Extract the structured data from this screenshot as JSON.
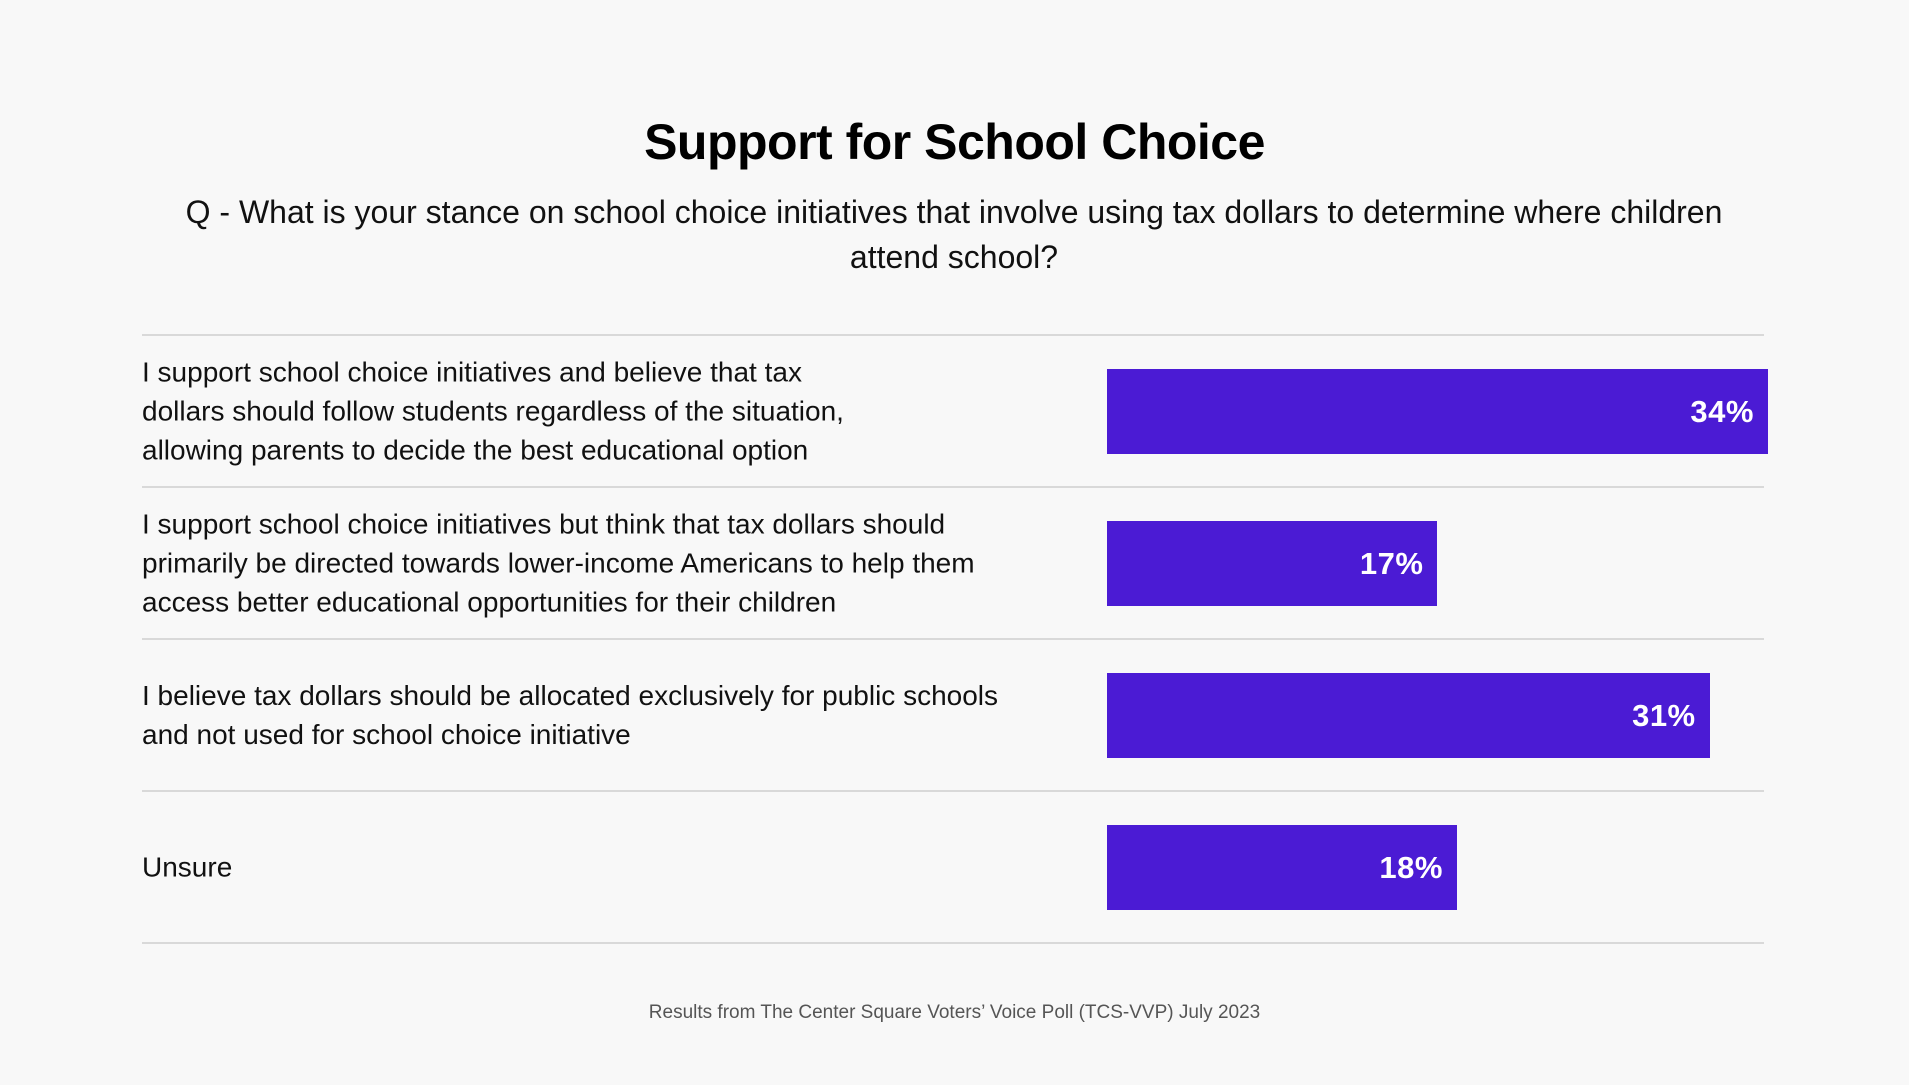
{
  "header": {
    "title": "Support for School Choice",
    "subtitle": "Q - What is your stance on school choice initiatives that involve using tax dollars to determine where children attend school?"
  },
  "colors": {
    "bar": "#4b1bd4",
    "background": "#f8f8f8",
    "divider": "#d9d9d9",
    "bar_label": "#ffffff"
  },
  "rows": [
    {
      "label_lines": [
        "I support school choice initiatives and believe that tax",
        "dollars should follow students regardless of the situation,",
        "allowing parents to decide the best educational option"
      ],
      "value": 34,
      "value_label": "34%"
    },
    {
      "label_lines": [
        "I support school choice initiatives but think that tax dollars should",
        "primarily be directed towards lower-income Americans to help them",
        "access better educational opportunities for their children"
      ],
      "value": 17,
      "value_label": "17%"
    },
    {
      "label_lines": [
        "I believe tax dollars should be allocated exclusively for public schools",
        "and not used for school choice initiative"
      ],
      "value": 31,
      "value_label": "31%"
    },
    {
      "label_lines": [
        "Unsure"
      ],
      "value": 18,
      "value_label": "18%"
    }
  ],
  "footer": {
    "source": "Results from The Center Square Voters’ Voice Poll (TCS-VVP) July 2023"
  },
  "chart_data": {
    "type": "bar",
    "orientation": "horizontal",
    "title": "Support for School Choice",
    "subtitle": "Q - What is your stance on school choice initiatives that involve using tax dollars to determine where children attend school?",
    "categories": [
      "I support school choice initiatives and believe that tax dollars should follow students regardless of the situation, allowing parents to decide the best educational option",
      "I support school choice initiatives but think that tax dollars should primarily be directed towards lower-income Americans to help them access better educational opportunities for their children",
      "I believe tax dollars should be allocated exclusively for public schools and not used for school choice initiative",
      "Unsure"
    ],
    "values": [
      34,
      17,
      31,
      18
    ],
    "unit": "%",
    "data_labels": [
      "34%",
      "17%",
      "31%",
      "18%"
    ],
    "xlabel": "",
    "ylabel": "",
    "xlim": [
      0,
      34
    ],
    "grid": false,
    "legend": null,
    "bar_color": "#4b1bd4",
    "annotation": "Results from The Center Square Voters’ Voice Poll (TCS-VVP) July 2023"
  }
}
